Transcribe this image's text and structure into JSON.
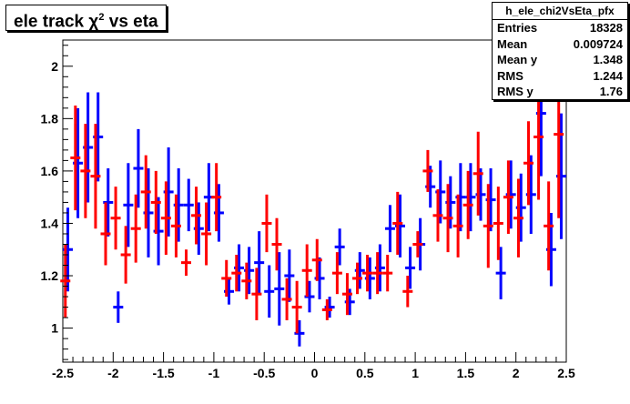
{
  "title": {
    "main": "ele track χ",
    "sup": "2",
    "rest": " vs eta"
  },
  "stats": {
    "name": "h_ele_chi2VsEta_pfx",
    "rows": [
      {
        "label": "Entries",
        "value": "18328"
      },
      {
        "label": "Mean",
        "value": "0.009724"
      },
      {
        "label": "Mean y",
        "value": "1.348"
      },
      {
        "label": "RMS",
        "value": "1.244"
      },
      {
        "label": "RMS y",
        "value": "1.76"
      }
    ]
  },
  "colors": {
    "series1": "#0000ff",
    "series2": "#ff0000"
  },
  "chart_data": {
    "type": "scatter",
    "title": "ele track χ² vs eta",
    "xlim": [
      -2.5,
      2.5
    ],
    "ylim": [
      0.87,
      2.1
    ],
    "xticks": [
      "-2.5",
      "-2",
      "-1.5",
      "-1",
      "-0.5",
      "0",
      "0.5",
      "1",
      "1.5",
      "2",
      "2.5"
    ],
    "yticks": [
      "1",
      "1.2",
      "1.4",
      "1.6",
      "1.8",
      "2"
    ],
    "grid": false,
    "legend": "none",
    "series": [
      {
        "color": "#0000ff",
        "x": [
          -2.45,
          -2.35,
          -2.25,
          -2.15,
          -2.05,
          -1.95,
          -1.85,
          -1.75,
          -1.65,
          -1.55,
          -1.45,
          -1.35,
          -1.25,
          -1.15,
          -1.05,
          -0.95,
          -0.85,
          -0.75,
          -0.65,
          -0.55,
          -0.45,
          -0.35,
          -0.25,
          -0.15,
          -0.05,
          0.05,
          0.15,
          0.25,
          0.35,
          0.45,
          0.55,
          0.65,
          0.75,
          0.85,
          0.95,
          1.05,
          1.15,
          1.25,
          1.35,
          1.45,
          1.55,
          1.65,
          1.75,
          1.85,
          1.95,
          2.05,
          2.15,
          2.25,
          2.35,
          2.45
        ],
        "y": [
          1.3,
          1.63,
          1.69,
          1.73,
          1.48,
          1.08,
          1.47,
          1.61,
          1.44,
          1.37,
          1.52,
          1.47,
          1.47,
          1.38,
          1.5,
          1.44,
          1.14,
          1.23,
          1.22,
          1.25,
          1.14,
          1.15,
          1.2,
          0.98,
          1.12,
          1.19,
          1.08,
          1.31,
          1.1,
          1.22,
          1.19,
          1.23,
          1.38,
          1.39,
          1.23,
          1.32,
          1.54,
          1.52,
          1.48,
          1.5,
          1.5,
          1.51,
          1.49,
          1.21,
          1.51,
          1.46,
          1.51,
          1.82,
          1.3,
          1.58
        ],
        "err": [
          0.16,
          0.21,
          0.21,
          0.17,
          0.13,
          0.06,
          0.16,
          0.15,
          0.17,
          0.13,
          0.17,
          0.14,
          0.1,
          0.1,
          0.13,
          0.11,
          0.05,
          0.09,
          0.09,
          0.12,
          0.1,
          0.14,
          0.1,
          0.05,
          0.06,
          0.08,
          0.04,
          0.07,
          0.05,
          0.07,
          0.08,
          0.09,
          0.09,
          0.12,
          0.08,
          0.1,
          0.08,
          0.12,
          0.1,
          0.13,
          0.13,
          0.1,
          0.12,
          0.1,
          0.13,
          0.13,
          0.15,
          0.24,
          0.14,
          0.24
        ]
      },
      {
        "color": "#ff0000",
        "x": [
          -2.475,
          -2.375,
          -2.275,
          -2.175,
          -2.075,
          -1.975,
          -1.875,
          -1.775,
          -1.675,
          -1.575,
          -1.475,
          -1.375,
          -1.275,
          -1.175,
          -1.075,
          -0.975,
          -0.875,
          -0.775,
          -0.675,
          -0.575,
          -0.475,
          -0.375,
          -0.275,
          -0.175,
          -0.075,
          0.025,
          0.125,
          0.225,
          0.325,
          0.425,
          0.525,
          0.625,
          0.725,
          0.825,
          0.925,
          1.025,
          1.125,
          1.225,
          1.325,
          1.425,
          1.525,
          1.625,
          1.725,
          1.825,
          1.925,
          2.025,
          2.125,
          2.225,
          2.325,
          2.425
        ],
        "y": [
          1.18,
          1.65,
          1.6,
          1.58,
          1.36,
          1.42,
          1.28,
          1.38,
          1.52,
          1.48,
          1.42,
          1.39,
          1.25,
          1.43,
          1.36,
          1.5,
          1.19,
          1.21,
          1.18,
          1.13,
          1.4,
          1.32,
          1.11,
          1.08,
          1.22,
          1.26,
          1.07,
          1.21,
          1.13,
          1.19,
          1.21,
          1.21,
          1.21,
          1.4,
          1.14,
          1.32,
          1.6,
          1.43,
          1.42,
          1.39,
          1.47,
          1.59,
          1.39,
          1.4,
          1.5,
          1.42,
          1.63,
          1.73,
          1.39,
          1.74
        ],
        "err": [
          0.14,
          0.2,
          0.18,
          0.2,
          0.12,
          0.12,
          0.11,
          0.13,
          0.14,
          0.12,
          0.14,
          0.12,
          0.05,
          0.11,
          0.12,
          0.13,
          0.07,
          0.07,
          0.07,
          0.1,
          0.11,
          0.1,
          0.08,
          0.1,
          0.1,
          0.08,
          0.04,
          0.08,
          0.08,
          0.06,
          0.07,
          0.08,
          0.07,
          0.12,
          0.06,
          0.05,
          0.08,
          0.1,
          0.13,
          0.12,
          0.13,
          0.16,
          0.16,
          0.14,
          0.14,
          0.15,
          0.16,
          0.24,
          0.17,
          0.32
        ]
      }
    ]
  }
}
